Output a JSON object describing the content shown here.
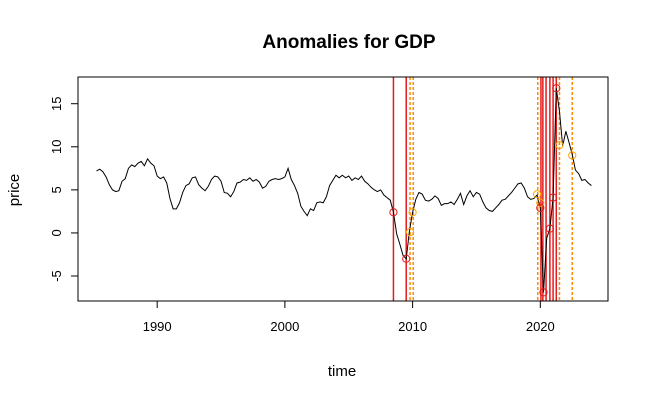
{
  "chart_data": {
    "type": "line",
    "title": "Anomalies for GDP",
    "xlabel": "time",
    "ylabel": "price",
    "xlim": [
      1983.8,
      2025.3
    ],
    "ylim": [
      -7.9,
      18.1
    ],
    "x_ticks": [
      1990,
      2000,
      2010,
      2020
    ],
    "x_tick_labels": [
      "1990",
      "2000",
      "2010",
      "2020"
    ],
    "y_ticks": [
      -5,
      0,
      5,
      10,
      15
    ],
    "y_tick_labels": [
      "-5",
      "0",
      "5",
      "10",
      "15"
    ],
    "grid": false,
    "series": [
      {
        "color": "#000000",
        "points": [
          [
            1985.25,
            7.2
          ],
          [
            1985.5,
            7.4
          ],
          [
            1985.75,
            7.1
          ],
          [
            1986.0,
            6.5
          ],
          [
            1986.25,
            5.6
          ],
          [
            1986.5,
            5.0
          ],
          [
            1986.75,
            4.8
          ],
          [
            1987.0,
            4.9
          ],
          [
            1987.25,
            6.0
          ],
          [
            1987.5,
            6.3
          ],
          [
            1987.75,
            7.5
          ],
          [
            1988.0,
            7.9
          ],
          [
            1988.25,
            7.7
          ],
          [
            1988.5,
            8.1
          ],
          [
            1988.75,
            8.3
          ],
          [
            1989.0,
            7.8
          ],
          [
            1989.25,
            8.6
          ],
          [
            1989.5,
            8.1
          ],
          [
            1989.75,
            7.8
          ],
          [
            1990.0,
            6.6
          ],
          [
            1990.25,
            6.3
          ],
          [
            1990.5,
            6.5
          ],
          [
            1990.75,
            5.8
          ],
          [
            1991.0,
            4.0
          ],
          [
            1991.25,
            2.8
          ],
          [
            1991.5,
            2.8
          ],
          [
            1991.75,
            3.5
          ],
          [
            1992.0,
            4.7
          ],
          [
            1992.25,
            5.5
          ],
          [
            1992.5,
            5.7
          ],
          [
            1992.75,
            6.4
          ],
          [
            1993.0,
            6.5
          ],
          [
            1993.25,
            5.6
          ],
          [
            1993.5,
            5.2
          ],
          [
            1993.75,
            4.9
          ],
          [
            1994.0,
            5.4
          ],
          [
            1994.25,
            6.2
          ],
          [
            1994.5,
            6.6
          ],
          [
            1994.75,
            6.5
          ],
          [
            1995.0,
            6.0
          ],
          [
            1995.25,
            4.7
          ],
          [
            1995.5,
            4.6
          ],
          [
            1995.75,
            4.2
          ],
          [
            1996.0,
            4.8
          ],
          [
            1996.25,
            5.8
          ],
          [
            1996.5,
            5.9
          ],
          [
            1996.75,
            6.2
          ],
          [
            1997.0,
            6.1
          ],
          [
            1997.25,
            6.4
          ],
          [
            1997.5,
            6.0
          ],
          [
            1997.75,
            6.2
          ],
          [
            1998.0,
            5.9
          ],
          [
            1998.25,
            5.2
          ],
          [
            1998.5,
            5.4
          ],
          [
            1998.75,
            6.0
          ],
          [
            1999.0,
            6.2
          ],
          [
            1999.25,
            6.3
          ],
          [
            1999.5,
            6.2
          ],
          [
            1999.75,
            6.3
          ],
          [
            2000.0,
            6.5
          ],
          [
            2000.25,
            7.5
          ],
          [
            2000.5,
            6.2
          ],
          [
            2000.75,
            5.5
          ],
          [
            2001.0,
            4.6
          ],
          [
            2001.25,
            3.1
          ],
          [
            2001.5,
            2.5
          ],
          [
            2001.75,
            2.0
          ],
          [
            2002.0,
            2.8
          ],
          [
            2002.25,
            2.6
          ],
          [
            2002.5,
            3.5
          ],
          [
            2002.75,
            3.6
          ],
          [
            2003.0,
            3.5
          ],
          [
            2003.25,
            4.2
          ],
          [
            2003.5,
            5.5
          ],
          [
            2003.75,
            6.1
          ],
          [
            2004.0,
            6.7
          ],
          [
            2004.25,
            6.4
          ],
          [
            2004.5,
            6.7
          ],
          [
            2004.75,
            6.4
          ],
          [
            2005.0,
            6.6
          ],
          [
            2005.25,
            6.1
          ],
          [
            2005.5,
            6.4
          ],
          [
            2005.75,
            6.2
          ],
          [
            2006.0,
            6.6
          ],
          [
            2006.25,
            6.0
          ],
          [
            2006.5,
            5.7
          ],
          [
            2006.75,
            5.3
          ],
          [
            2007.0,
            5.0
          ],
          [
            2007.25,
            4.8
          ],
          [
            2007.5,
            5.0
          ],
          [
            2007.75,
            4.4
          ],
          [
            2008.0,
            4.1
          ],
          [
            2008.25,
            3.8
          ],
          [
            2008.5,
            2.4
          ],
          [
            2008.75,
            -0.1
          ],
          [
            2009.0,
            -1.3
          ],
          [
            2009.25,
            -2.6
          ],
          [
            2009.5,
            -3.0
          ],
          [
            2009.75,
            0.2
          ],
          [
            2010.0,
            2.4
          ],
          [
            2010.25,
            3.9
          ],
          [
            2010.5,
            4.7
          ],
          [
            2010.75,
            4.5
          ],
          [
            2011.0,
            3.8
          ],
          [
            2011.25,
            3.7
          ],
          [
            2011.5,
            3.9
          ],
          [
            2011.75,
            4.3
          ],
          [
            2012.0,
            4.0
          ],
          [
            2012.25,
            3.2
          ],
          [
            2012.5,
            3.4
          ],
          [
            2012.75,
            3.4
          ],
          [
            2013.0,
            3.6
          ],
          [
            2013.25,
            3.3
          ],
          [
            2013.5,
            3.9
          ],
          [
            2013.75,
            4.6
          ],
          [
            2014.0,
            3.3
          ],
          [
            2014.25,
            4.3
          ],
          [
            2014.5,
            4.9
          ],
          [
            2014.75,
            4.2
          ],
          [
            2015.0,
            4.7
          ],
          [
            2015.25,
            4.5
          ],
          [
            2015.5,
            3.6
          ],
          [
            2015.75,
            2.9
          ],
          [
            2016.0,
            2.6
          ],
          [
            2016.25,
            2.5
          ],
          [
            2016.5,
            2.9
          ],
          [
            2016.75,
            3.3
          ],
          [
            2017.0,
            3.8
          ],
          [
            2017.25,
            3.9
          ],
          [
            2017.5,
            4.3
          ],
          [
            2017.75,
            4.7
          ],
          [
            2018.0,
            5.2
          ],
          [
            2018.25,
            5.7
          ],
          [
            2018.5,
            5.8
          ],
          [
            2018.75,
            5.2
          ],
          [
            2019.0,
            4.2
          ],
          [
            2019.25,
            3.9
          ],
          [
            2019.5,
            4.0
          ],
          [
            2019.75,
            4.4
          ],
          [
            2020.0,
            2.9
          ],
          [
            2020.25,
            -6.9
          ],
          [
            2020.5,
            -0.6
          ],
          [
            2020.75,
            0.5
          ],
          [
            2021.0,
            4.1
          ],
          [
            2021.25,
            16.8
          ],
          [
            2021.5,
            14.1
          ],
          [
            2021.75,
            10.1
          ],
          [
            2022.0,
            11.8
          ],
          [
            2022.25,
            10.5
          ],
          [
            2022.5,
            9.1
          ],
          [
            2022.75,
            7.3
          ],
          [
            2023.0,
            6.9
          ],
          [
            2023.25,
            6.1
          ],
          [
            2023.5,
            6.2
          ],
          [
            2023.75,
            5.8
          ],
          [
            2024.0,
            5.5
          ]
        ]
      }
    ],
    "anomaly_lines_solid": {
      "color": "#e41a1c",
      "x": [
        2008.5,
        2009.5,
        2020.05,
        2020.2,
        2020.45,
        2020.75,
        2021.0,
        2021.25
      ]
    },
    "anomaly_lines_dashed": {
      "color": "#ff8c00",
      "x": [
        2009.8,
        2010.05,
        2019.8,
        2021.5,
        2022.5
      ]
    },
    "anomaly_points_red": {
      "color": "#e41a1c",
      "points": [
        [
          2008.5,
          2.4
        ],
        [
          2009.5,
          -3.0
        ],
        [
          2020.0,
          2.9
        ],
        [
          2020.25,
          -6.9
        ],
        [
          2020.75,
          0.5
        ],
        [
          2021.0,
          4.1
        ],
        [
          2021.25,
          16.8
        ]
      ]
    },
    "anomaly_points_orange": {
      "color": "#ffa500",
      "points": [
        [
          2009.8,
          0.1
        ],
        [
          2010.0,
          2.4
        ],
        [
          2019.75,
          4.5
        ],
        [
          2020.0,
          3.5
        ],
        [
          2021.5,
          10.2
        ],
        [
          2022.5,
          9.0
        ]
      ]
    }
  }
}
